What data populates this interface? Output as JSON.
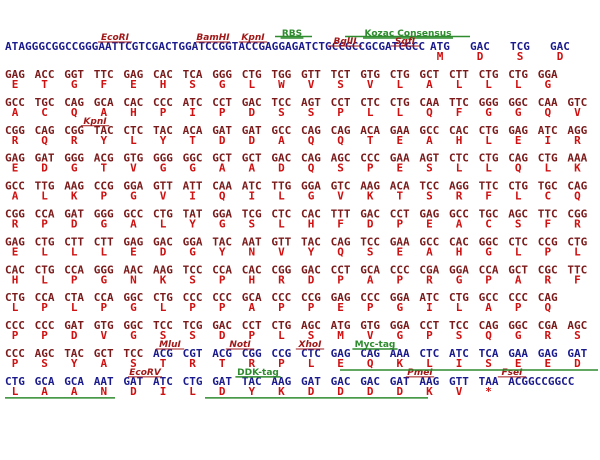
{
  "header": {
    "sequence": "ATAGGGCGGCCGGGAATTCGTCGACTGGATCCGGTACCGAGGAGATCTGCCGCCGCGATCGCC",
    "codons": [
      "ATG",
      "GAC",
      "TCG",
      "GAC"
    ],
    "aa": [
      "M",
      "D",
      "S",
      "D"
    ],
    "labels": [
      {
        "text": "EcoRI",
        "kind": "enzyme"
      },
      {
        "text": "BamHI",
        "kind": "enzyme"
      },
      {
        "text": "KpnI",
        "kind": "enzyme"
      },
      {
        "text": "RBS",
        "kind": "feature"
      },
      {
        "text": "BglII",
        "kind": "enzyme"
      },
      {
        "text": "Kozac Consensus",
        "kind": "feature"
      },
      {
        "text": "SgfI",
        "kind": "enzyme"
      }
    ]
  },
  "colors": {
    "insert": "#7a1a1a",
    "vector": "#1a1a8c",
    "aa": "#d01010",
    "enzyme": "#a01818",
    "feature": "#2e8b2e"
  },
  "rows": [
    {
      "codons": [
        "GAG",
        "ACC",
        "GGT",
        "TTC",
        "GAG",
        "CAC",
        "TCA",
        "GGG",
        "CTG",
        "TGG",
        "GTT",
        "TCT",
        "GTG",
        "CTG",
        "GCT",
        "CTT",
        "CTG",
        "CTG",
        "GGA"
      ],
      "aa": [
        "E",
        "T",
        "G",
        "F",
        "E",
        "H",
        "S",
        "G",
        "L",
        "W",
        "V",
        "S",
        "V",
        "L",
        "A",
        "L",
        "L",
        "L",
        "G"
      ]
    },
    {
      "codons": [
        "GCC",
        "TGC",
        "CAG",
        "GCA",
        "CAC",
        "CCC",
        "ATC",
        "CCT",
        "GAC",
        "TCC",
        "AGT",
        "CCT",
        "CTC",
        "CTG",
        "CAA",
        "TTC",
        "GGG",
        "GGC",
        "CAA",
        "GTC"
      ],
      "aa": [
        "A",
        "C",
        "Q",
        "A",
        "H",
        "P",
        "I",
        "P",
        "D",
        "S",
        "S",
        "P",
        "L",
        "L",
        "Q",
        "F",
        "G",
        "G",
        "Q",
        "V"
      ]
    },
    {
      "codons": [
        "CGG",
        "CAG",
        "CGG",
        "TAC",
        "CTC",
        "TAC",
        "ACA",
        "GAT",
        "GAT",
        "GCC",
        "CAG",
        "CAG",
        "ACA",
        "GAA",
        "GCC",
        "CAC",
        "CTG",
        "GAG",
        "ATC",
        "AGG"
      ],
      "aa": [
        "R",
        "Q",
        "R",
        "Y",
        "L",
        "Y",
        "T",
        "D",
        "D",
        "A",
        "Q",
        "Q",
        "T",
        "E",
        "A",
        "H",
        "L",
        "E",
        "I",
        "R"
      ],
      "labels": [
        {
          "text": "KpnI",
          "kind": "enzyme"
        }
      ]
    },
    {
      "codons": [
        "GAG",
        "GAT",
        "GGG",
        "ACG",
        "GTG",
        "GGG",
        "GGC",
        "GCT",
        "GCT",
        "GAC",
        "CAG",
        "AGC",
        "CCC",
        "GAA",
        "AGT",
        "CTC",
        "CTG",
        "CAG",
        "CTG",
        "AAA"
      ],
      "aa": [
        "E",
        "D",
        "G",
        "T",
        "V",
        "G",
        "G",
        "A",
        "A",
        "D",
        "Q",
        "S",
        "P",
        "E",
        "S",
        "L",
        "L",
        "Q",
        "L",
        "K"
      ]
    },
    {
      "codons": [
        "GCC",
        "TTG",
        "AAG",
        "CCG",
        "GGA",
        "GTT",
        "ATT",
        "CAA",
        "ATC",
        "TTG",
        "GGA",
        "GTC",
        "AAG",
        "ACA",
        "TCC",
        "AGG",
        "TTC",
        "CTG",
        "TGC",
        "CAG"
      ],
      "aa": [
        "A",
        "L",
        "K",
        "P",
        "G",
        "V",
        "I",
        "Q",
        "I",
        "L",
        "G",
        "V",
        "K",
        "T",
        "S",
        "R",
        "F",
        "L",
        "C",
        "Q"
      ]
    },
    {
      "codons": [
        "CGG",
        "CCA",
        "GAT",
        "GGG",
        "GCC",
        "CTG",
        "TAT",
        "GGA",
        "TCG",
        "CTC",
        "CAC",
        "TTT",
        "GAC",
        "CCT",
        "GAG",
        "GCC",
        "TGC",
        "AGC",
        "TTC",
        "CGG"
      ],
      "aa": [
        "R",
        "P",
        "D",
        "G",
        "A",
        "L",
        "Y",
        "G",
        "S",
        "L",
        "H",
        "F",
        "D",
        "P",
        "E",
        "A",
        "C",
        "S",
        "F",
        "R"
      ]
    },
    {
      "codons": [
        "GAG",
        "CTG",
        "CTT",
        "CTT",
        "GAG",
        "GAC",
        "GGA",
        "TAC",
        "AAT",
        "GTT",
        "TAC",
        "CAG",
        "TCC",
        "GAA",
        "GCC",
        "CAC",
        "GGC",
        "CTC",
        "CCG",
        "CTG"
      ],
      "aa": [
        "E",
        "L",
        "L",
        "L",
        "E",
        "D",
        "G",
        "Y",
        "N",
        "V",
        "Y",
        "Q",
        "S",
        "E",
        "A",
        "H",
        "G",
        "L",
        "P",
        "L"
      ]
    },
    {
      "codons": [
        "CAC",
        "CTG",
        "CCA",
        "GGG",
        "AAC",
        "AAG",
        "TCC",
        "CCA",
        "CAC",
        "CGG",
        "GAC",
        "CCT",
        "GCA",
        "CCC",
        "CGA",
        "GGA",
        "CCA",
        "GCT",
        "CGC",
        "TTC"
      ],
      "aa": [
        "H",
        "L",
        "P",
        "G",
        "N",
        "K",
        "S",
        "P",
        "H",
        "R",
        "D",
        "P",
        "A",
        "P",
        "R",
        "G",
        "P",
        "A",
        "R",
        "F"
      ]
    },
    {
      "codons": [
        "CTG",
        "CCA",
        "CTA",
        "CCA",
        "GGC",
        "CTG",
        "CCC",
        "CCC",
        "GCA",
        "CCC",
        "CCG",
        "GAG",
        "CCC",
        "GGA",
        "ATC",
        "CTG",
        "GCC",
        "CCC",
        "CAG"
      ],
      "aa": [
        "L",
        "P",
        "L",
        "P",
        "G",
        "L",
        "P",
        "P",
        "A",
        "P",
        "P",
        "E",
        "P",
        "G",
        "I",
        "L",
        "A",
        "P",
        "Q"
      ]
    },
    {
      "codons": [
        "CCC",
        "CCC",
        "GAT",
        "GTG",
        "GGC",
        "TCC",
        "TCG",
        "GAC",
        "CCT",
        "CTG",
        "AGC",
        "ATG",
        "GTG",
        "GGA",
        "CCT",
        "TCC",
        "CAG",
        "GGC",
        "CGA",
        "AGC"
      ],
      "aa": [
        "P",
        "P",
        "D",
        "V",
        "G",
        "S",
        "S",
        "D",
        "P",
        "L",
        "S",
        "M",
        "V",
        "G",
        "P",
        "S",
        "Q",
        "G",
        "R",
        "S"
      ]
    },
    {
      "codons": [
        "CCC",
        "AGC",
        "TAC",
        "GCT",
        "TCC",
        "ACG",
        "CGT",
        "ACG",
        "CGG",
        "CCG",
        "CTC",
        "GAG",
        "CAG",
        "AAA",
        "CTC",
        "ATC",
        "TCA",
        "GAA",
        "GAG",
        "GAT"
      ],
      "aa": [
        "P",
        "S",
        "Y",
        "A",
        "S",
        "T",
        "R",
        "T",
        "R",
        "P",
        "L",
        "E",
        "Q",
        "K",
        "L",
        "I",
        "S",
        "E",
        "E",
        "D"
      ],
      "vector_from": 5,
      "labels": [
        {
          "text": "MluI",
          "kind": "enzyme"
        },
        {
          "text": "NotI",
          "kind": "enzyme"
        },
        {
          "text": "XhoI",
          "kind": "enzyme"
        },
        {
          "text": "Myc-tag",
          "kind": "feature"
        }
      ]
    },
    {
      "codons": [
        "CTG",
        "GCA",
        "GCA",
        "AAT",
        "GAT",
        "ATC",
        "CTG",
        "GAT",
        "TAC",
        "AAG",
        "GAT",
        "GAC",
        "GAC",
        "GAT",
        "AAG",
        "GTT",
        "TAA",
        "ACGGCCGGCC"
      ],
      "aa": [
        "L",
        "A",
        "A",
        "N",
        "D",
        "I",
        "L",
        "D",
        "Y",
        "K",
        "D",
        "D",
        "D",
        "D",
        "K",
        "V",
        "*",
        null
      ],
      "vector_from": 0,
      "labels": [
        {
          "text": "EcoRV",
          "kind": "enzyme"
        },
        {
          "text": "DDK-tag",
          "kind": "feature"
        },
        {
          "text": "PmeI",
          "kind": "enzyme"
        },
        {
          "text": "FseI",
          "kind": "enzyme"
        }
      ]
    }
  ]
}
